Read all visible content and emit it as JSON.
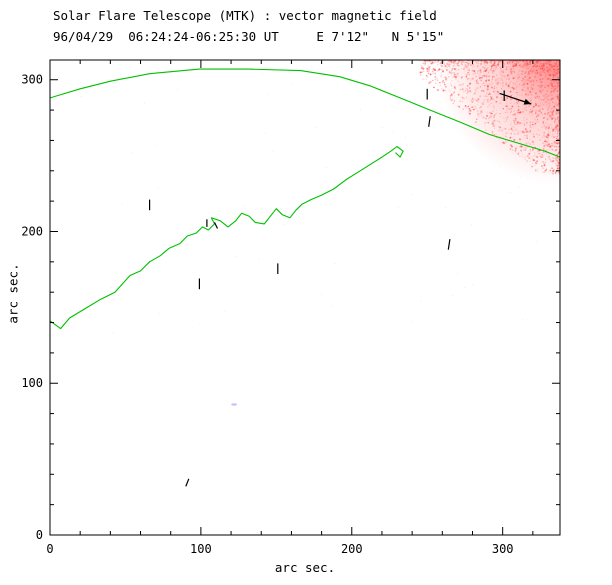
{
  "chart_data": {
    "type": "line",
    "subtype": "contour-and-vector-magnetogram",
    "title": "Solar Flare Telescope (MTK) : vector magnetic field",
    "subtitle": "96/04/29  06:24:24-06:25:30 UT     E 7'12\"   N 5'15\"",
    "xlabel": "arc sec.",
    "ylabel": "arc sec.",
    "xlim": [
      0,
      338
    ],
    "ylim": [
      0,
      313
    ],
    "xticks": [
      0,
      100,
      200,
      300
    ],
    "yticks": [
      0,
      100,
      200,
      300
    ],
    "minor_tick_step": 20,
    "grid": false,
    "legend": false,
    "axes": "box-inward-ticks",
    "background": "#ffffff",
    "contour_color": "#00c000",
    "vector_color": "#000000",
    "speckle_color": "#ff5a5a",
    "contours": [
      {
        "name": "limb-contour",
        "points": [
          [
            0,
            288
          ],
          [
            20,
            294
          ],
          [
            40,
            299
          ],
          [
            66,
            304
          ],
          [
            99,
            307
          ],
          [
            132,
            307
          ],
          [
            166,
            306
          ],
          [
            192,
            302
          ],
          [
            212,
            296
          ],
          [
            232,
            288
          ],
          [
            252,
            280
          ],
          [
            272,
            272
          ],
          [
            291,
            264
          ],
          [
            311,
            258
          ],
          [
            328,
            253
          ],
          [
            338,
            249
          ]
        ]
      },
      {
        "name": "magnetic-neutral-line",
        "points": [
          [
            0,
            141
          ],
          [
            7,
            136
          ],
          [
            13,
            143
          ],
          [
            23,
            149
          ],
          [
            33,
            155
          ],
          [
            43,
            160
          ],
          [
            53,
            171
          ],
          [
            60,
            174
          ],
          [
            66,
            180
          ],
          [
            73,
            184
          ],
          [
            79,
            189
          ],
          [
            86,
            192
          ],
          [
            91,
            197
          ],
          [
            97,
            199
          ],
          [
            101,
            203
          ],
          [
            105,
            201
          ],
          [
            109,
            205
          ],
          [
            107,
            209
          ],
          [
            113,
            207
          ],
          [
            118,
            203
          ],
          [
            123,
            207
          ],
          [
            127,
            212
          ],
          [
            132,
            210
          ],
          [
            136,
            206
          ],
          [
            142,
            205
          ],
          [
            146,
            210
          ],
          [
            150,
            215
          ],
          [
            154,
            211
          ],
          [
            159,
            209
          ],
          [
            163,
            214
          ],
          [
            167,
            218
          ],
          [
            173,
            221
          ],
          [
            180,
            224
          ],
          [
            188,
            228
          ],
          [
            196,
            234
          ],
          [
            204,
            239
          ],
          [
            212,
            244
          ],
          [
            220,
            249
          ],
          [
            226,
            253
          ],
          [
            230,
            256
          ],
          [
            234,
            253
          ],
          [
            232,
            249
          ],
          [
            229,
            252
          ]
        ]
      }
    ],
    "vectors": [
      {
        "x1": 250,
        "y1": 294,
        "x2": 250,
        "y2": 287
      },
      {
        "x1": 301,
        "y1": 293,
        "x2": 301,
        "y2": 286
      },
      {
        "x1": 298,
        "y1": 291,
        "x2": 319,
        "y2": 284,
        "arrow": true
      },
      {
        "x1": 252,
        "y1": 276,
        "x2": 251,
        "y2": 269
      },
      {
        "x1": 66,
        "y1": 221,
        "x2": 66,
        "y2": 214
      },
      {
        "x1": 104,
        "y1": 208,
        "x2": 104,
        "y2": 203
      },
      {
        "x1": 109,
        "y1": 206,
        "x2": 111,
        "y2": 202
      },
      {
        "x1": 151,
        "y1": 179,
        "x2": 151,
        "y2": 172
      },
      {
        "x1": 99,
        "y1": 169,
        "x2": 99,
        "y2": 162
      },
      {
        "x1": 265,
        "y1": 195,
        "x2": 264,
        "y2": 188
      },
      {
        "x1": 92,
        "y1": 37,
        "x2": 90,
        "y2": 32
      }
    ],
    "speckle_region": {
      "x_min": 245,
      "x_max": 338,
      "y_min": 238,
      "y_max": 313,
      "count": 3000,
      "colors": [
        "#ff4848",
        "#ff7878",
        "#ffaaaa"
      ]
    },
    "field_speckles": {
      "x_min": 20,
      "x_max": 335,
      "y_min": 130,
      "y_max": 310,
      "count": 60
    },
    "faint_dot": {
      "x": 122,
      "y": 86,
      "color": "#b8b8ff"
    }
  }
}
